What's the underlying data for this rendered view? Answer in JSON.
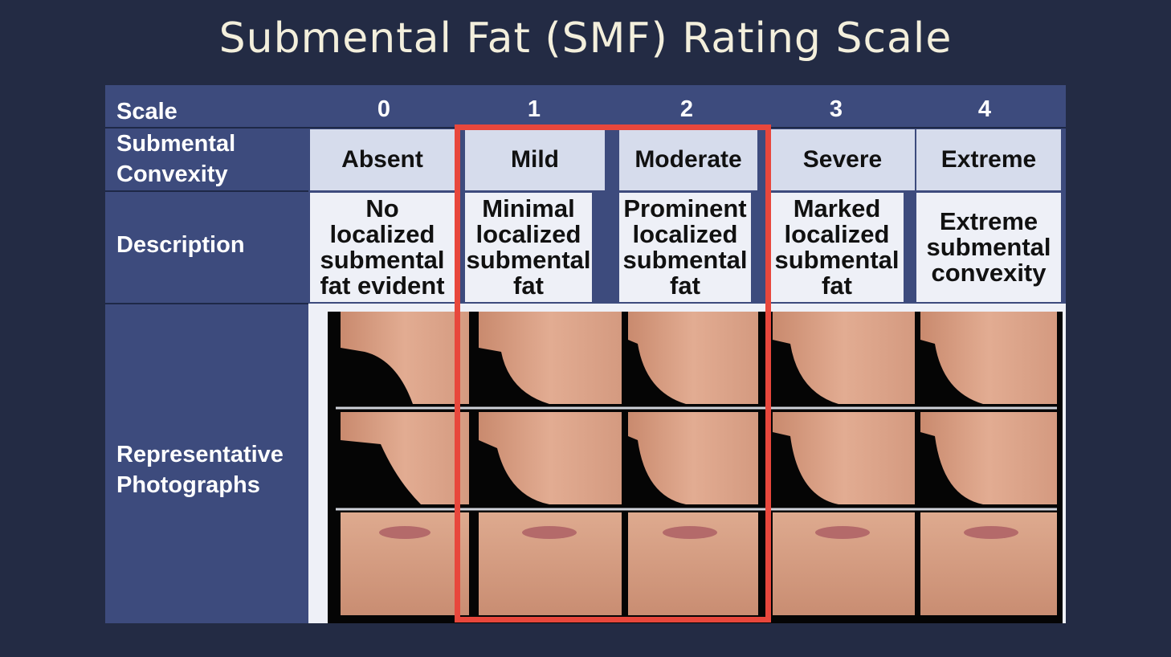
{
  "title": "Submental Fat (SMF) Rating Scale",
  "rows": {
    "scale_label": "Scale",
    "convexity_label_line1": "Submental",
    "convexity_label_line2": "Convexity",
    "description_label": "Description",
    "photos_label_line1": "Representative",
    "photos_label_line2": "Photographs"
  },
  "columns": [
    {
      "scale": "0",
      "convexity": "Absent",
      "description": [
        "No",
        "localized",
        "submental",
        "fat evident"
      ]
    },
    {
      "scale": "1",
      "convexity": "Mild",
      "description": [
        "Minimal",
        "localized",
        "submental",
        "fat"
      ]
    },
    {
      "scale": "2",
      "convexity": "Moderate",
      "description": [
        "Prominent",
        "localized",
        "submental",
        "fat"
      ]
    },
    {
      "scale": "3",
      "convexity": "Severe",
      "description": [
        "Marked",
        "localized",
        "submental",
        "fat"
      ]
    },
    {
      "scale": "4",
      "convexity": "Extreme",
      "description": [
        "Extreme",
        "submental",
        "convexity"
      ]
    }
  ],
  "highlight": {
    "columns": [
      "1",
      "2"
    ],
    "color": "#e8473c"
  },
  "colors": {
    "background": "#232b44",
    "table_header": "#3d4b7d",
    "light_cell": "#d6dcec",
    "title": "#f3efdc"
  }
}
